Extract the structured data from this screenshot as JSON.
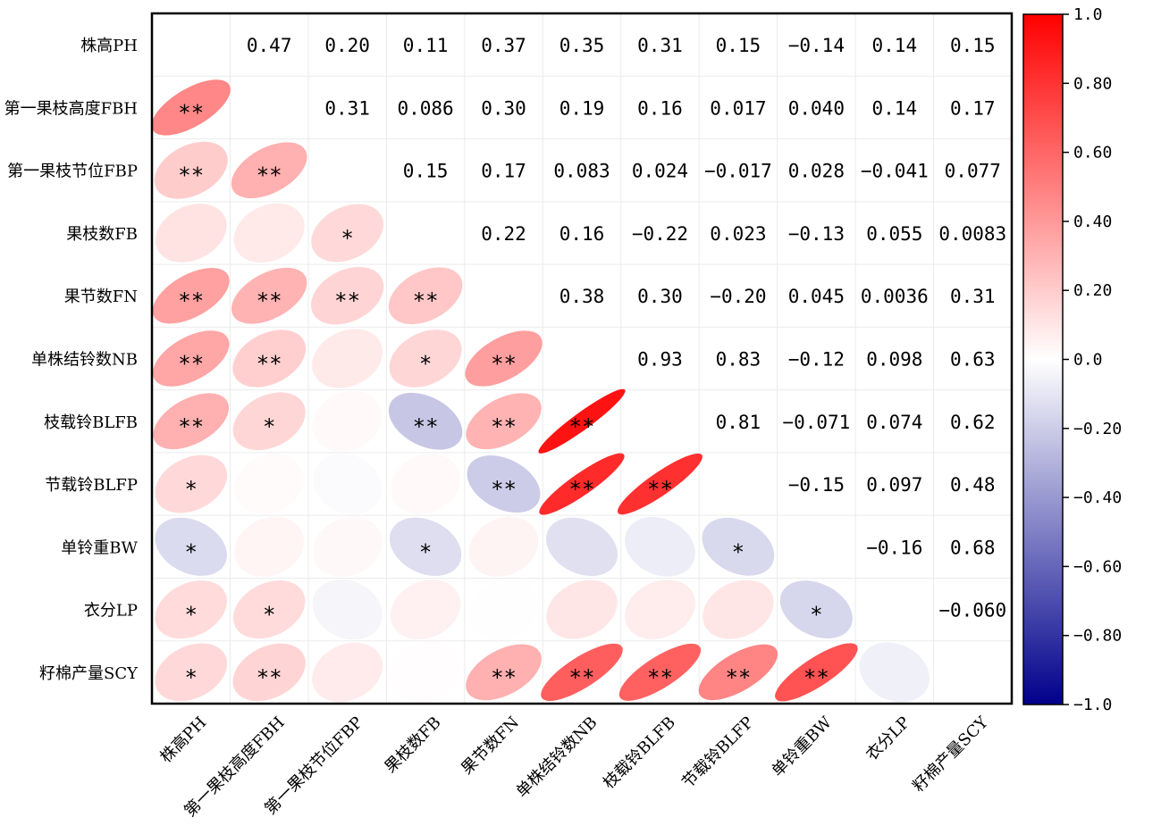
{
  "chart_data": {
    "type": "heatmap",
    "variables": [
      "株高PH",
      "第一果枝高度FBH",
      "第一果枝节位FBP",
      "果枝数FB",
      "果节数FN",
      "单株结铃数NB",
      "枝载铃BLFB",
      "节载铃BLFP",
      "单铃重BW",
      "衣分LP",
      "籽棉产量SCY"
    ],
    "upper_labels": [
      [
        null,
        "0.47",
        "0.20",
        "0.11",
        "0.37",
        "0.35",
        "0.31",
        "0.15",
        "−0.14",
        "0.14",
        "0.15"
      ],
      [
        null,
        null,
        "0.31",
        "0.086",
        "0.30",
        "0.19",
        "0.16",
        "0.017",
        "0.040",
        "0.14",
        "0.17"
      ],
      [
        null,
        null,
        null,
        "0.15",
        "0.17",
        "0.083",
        "0.024",
        "−0.017",
        "0.028",
        "−0.041",
        "0.077"
      ],
      [
        null,
        null,
        null,
        null,
        "0.22",
        "0.16",
        "−0.22",
        "0.023",
        "−0.13",
        "0.055",
        "0.0083"
      ],
      [
        null,
        null,
        null,
        null,
        null,
        "0.38",
        "0.30",
        "−0.20",
        "0.045",
        "0.0036",
        "0.31"
      ],
      [
        null,
        null,
        null,
        null,
        null,
        null,
        "0.93",
        "0.83",
        "−0.12",
        "0.098",
        "0.63"
      ],
      [
        null,
        null,
        null,
        null,
        null,
        null,
        null,
        "0.81",
        "−0.071",
        "0.074",
        "0.62"
      ],
      [
        null,
        null,
        null,
        null,
        null,
        null,
        null,
        null,
        "−0.15",
        "0.097",
        "0.48"
      ],
      [
        null,
        null,
        null,
        null,
        null,
        null,
        null,
        null,
        null,
        "−0.16",
        "0.68"
      ],
      [
        null,
        null,
        null,
        null,
        null,
        null,
        null,
        null,
        null,
        null,
        "−0.060"
      ],
      [
        null,
        null,
        null,
        null,
        null,
        null,
        null,
        null,
        null,
        null,
        null
      ]
    ],
    "significance": [
      [
        "",
        "",
        "",
        "",
        "",
        "",
        "",
        "",
        "",
        "",
        ""
      ],
      [
        "**",
        "",
        "",
        "",
        "",
        "",
        "",
        "",
        "",
        "",
        ""
      ],
      [
        "**",
        "**",
        "",
        "",
        "",
        "",
        "",
        "",
        "",
        "",
        ""
      ],
      [
        "",
        "",
        "*",
        "",
        "",
        "",
        "",
        "",
        "",
        "",
        ""
      ],
      [
        "**",
        "**",
        "**",
        "**",
        "",
        "",
        "",
        "",
        "",
        "",
        ""
      ],
      [
        "**",
        "**",
        "",
        "*",
        "**",
        "",
        "",
        "",
        "",
        "",
        ""
      ],
      [
        "**",
        "*",
        "",
        "**",
        "**",
        "**",
        "",
        "",
        "",
        "",
        ""
      ],
      [
        "*",
        "",
        "",
        "",
        "**",
        "**",
        "**",
        "",
        "",
        "",
        ""
      ],
      [
        "*",
        "",
        "",
        "*",
        "",
        "",
        "",
        "*",
        "",
        "",
        ""
      ],
      [
        "*",
        "*",
        "",
        "",
        "",
        "",
        "",
        "",
        "*",
        "",
        ""
      ],
      [
        "*",
        "**",
        "",
        "",
        "**",
        "**",
        "**",
        "**",
        "**",
        "",
        ""
      ]
    ],
    "colorbar": {
      "range": [
        -1.0,
        1.0
      ],
      "ticks": [
        "1.0",
        "0.80",
        "0.60",
        "0.40",
        "0.20",
        "0.0",
        "−0.20",
        "−0.40",
        "−0.60",
        "−0.80",
        "−1.0"
      ],
      "colors": {
        "negative": "#00008b",
        "zero": "#ffffff",
        "positive": "#ff0000"
      }
    }
  }
}
